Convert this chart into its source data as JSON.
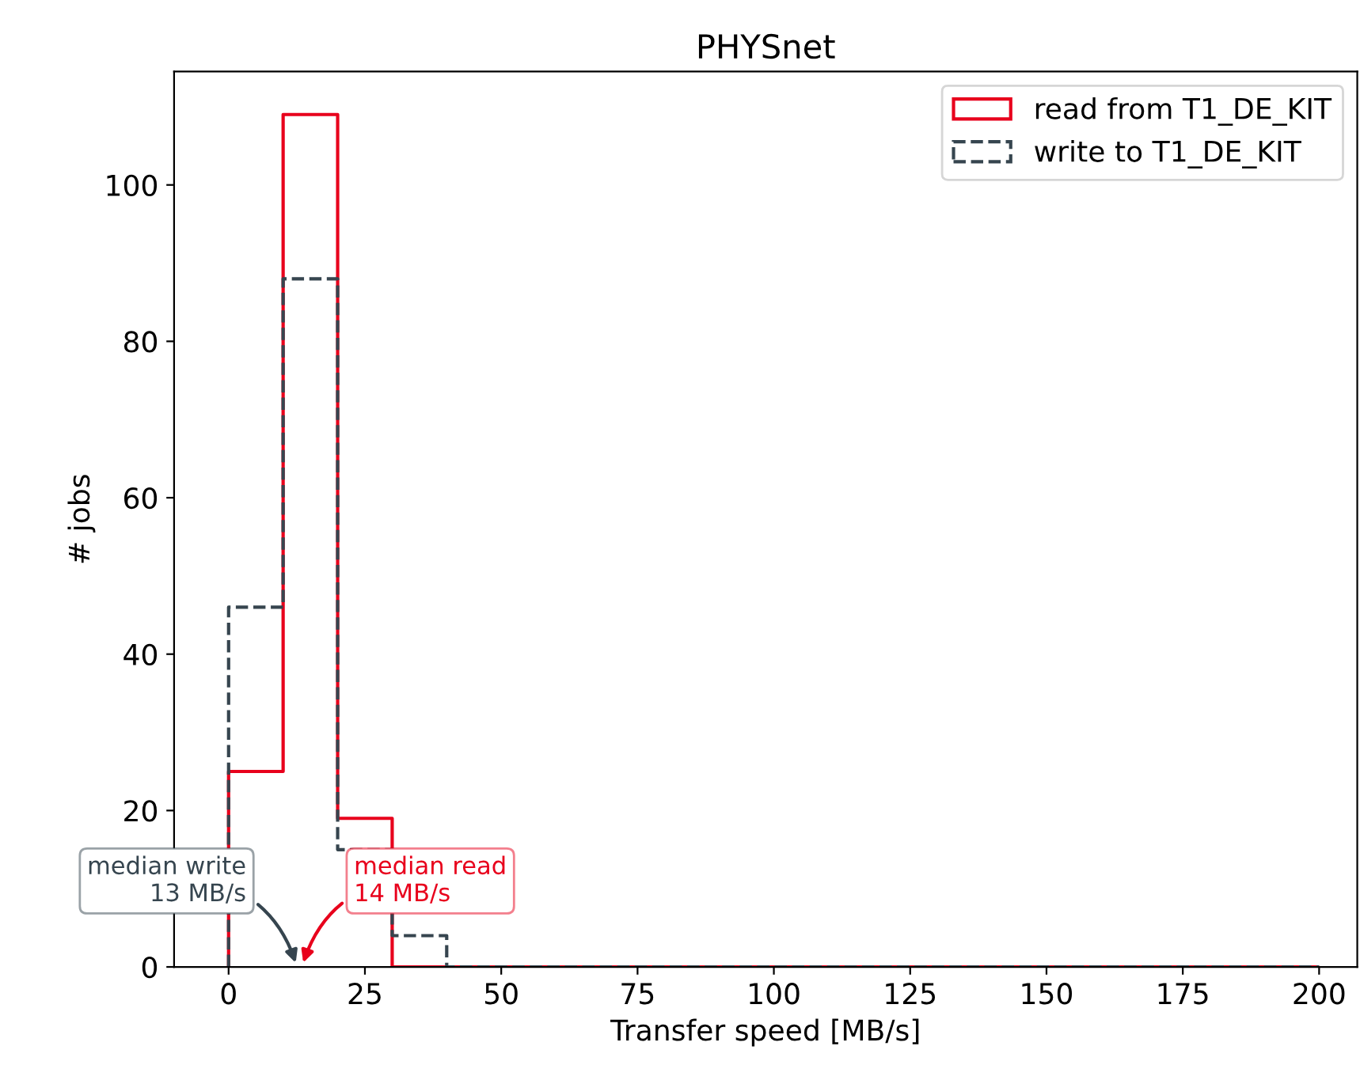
{
  "chart_data": {
    "type": "histogram",
    "title": "PHYSnet",
    "xlabel": "Transfer speed [MB/s]",
    "ylabel": "# jobs",
    "bins": [
      0,
      10,
      20,
      30,
      40,
      50,
      60,
      70,
      80,
      90,
      100,
      110,
      120,
      130,
      140,
      150,
      160,
      170,
      180,
      190,
      200
    ],
    "series": [
      {
        "name": "read from T1_DE_KIT",
        "color": "#e8001c",
        "line_style": "solid",
        "values": [
          25,
          109,
          19,
          0,
          0,
          0,
          0,
          0,
          0,
          0,
          0,
          0,
          0,
          0,
          0,
          0,
          0,
          0,
          0,
          0
        ]
      },
      {
        "name": "write to T1_DE_KIT",
        "color": "#36454f",
        "line_style": "dashed",
        "values": [
          46,
          88,
          15,
          4,
          0,
          0,
          0,
          0,
          0,
          0,
          0,
          0,
          0,
          0,
          0,
          0,
          0,
          0,
          0,
          0
        ]
      }
    ],
    "annotations": [
      "median read\n14 MB/s",
      "median write\n13 MB/s"
    ],
    "xlim": [
      -10,
      207
    ],
    "ylim": [
      0,
      114.5
    ],
    "xticks": [
      0,
      25,
      50,
      75,
      100,
      125,
      150,
      175,
      200
    ],
    "yticks": [
      0,
      20,
      40,
      60,
      80,
      100
    ],
    "legend": "top right",
    "grid": false
  }
}
